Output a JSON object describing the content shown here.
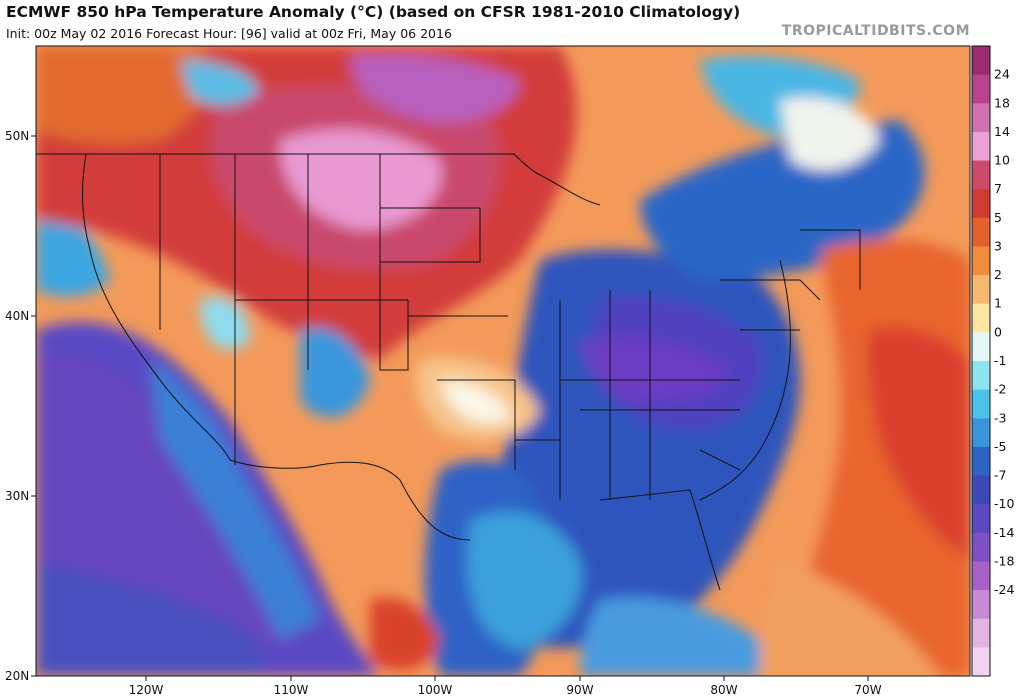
{
  "header": {
    "title": "ECMWF 850 hPa Temperature Anomaly (°C) (based on CFSR 1981-2010 Climatology)",
    "subtitle": "Init: 00z May 02 2016   Forecast Hour: [96]   valid at 00z Fri, May 06 2016",
    "brand": "TROPICALTIDBITS.COM"
  },
  "map": {
    "region": "North America",
    "latitude_labels": [
      "50N",
      "40N",
      "30N",
      "20N"
    ],
    "longitude_labels": [
      "120W",
      "110W",
      "100W",
      "90W",
      "80W",
      "70W"
    ]
  },
  "colorbar": {
    "labels": [
      "24",
      "18",
      "14",
      "10",
      "7",
      "5",
      "3",
      "2",
      "1",
      "0",
      "-1",
      "-2",
      "-3",
      "-5",
      "-7",
      "-10",
      "-14",
      "-18",
      "-24"
    ],
    "colors": [
      "#9c2a6e",
      "#b8438e",
      "#d070b0",
      "#e9a2d3",
      "#cc4a6a",
      "#d23a34",
      "#e3612c",
      "#f08c3b",
      "#f6b870",
      "#fbe6a4",
      "#e4f7f6",
      "#8ee4ee",
      "#4cc2e8",
      "#3b93db",
      "#2c63c4",
      "#3d49b8",
      "#5a49c0",
      "#7e50c6",
      "#a85fc8",
      "#c88ad4",
      "#e3b3e3",
      "#f3d2ef"
    ]
  }
}
